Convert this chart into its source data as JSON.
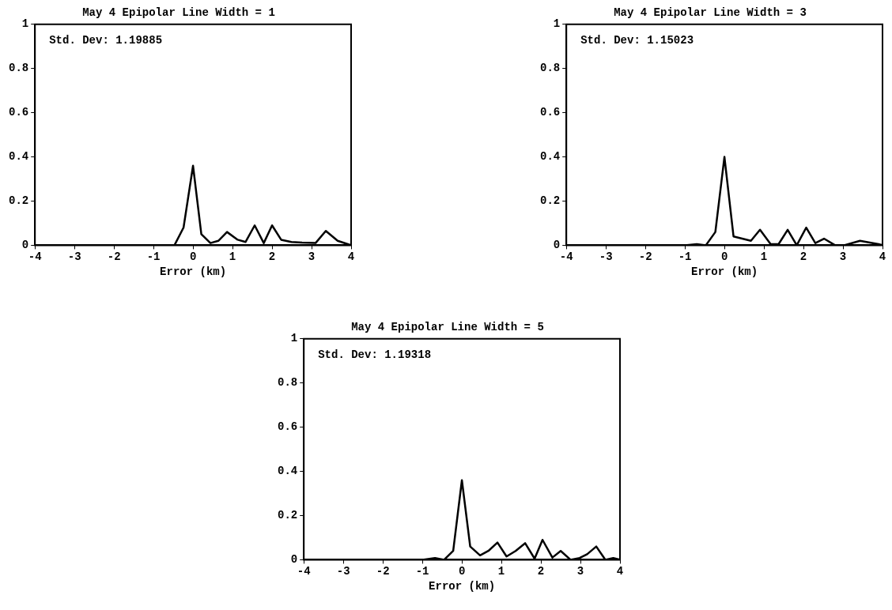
{
  "chart_data": [
    {
      "type": "line",
      "title": "May 4 Epipolar Line Width = 1",
      "xlabel": "Error (km)",
      "annotations": [
        "Std. Dev: 1.19885"
      ],
      "xlim": [
        -4,
        4
      ],
      "ylim": [
        0,
        1
      ],
      "xticks": [
        -4,
        -3,
        -2,
        -1,
        0,
        1,
        2,
        3,
        4
      ],
      "yticks": [
        0,
        0.2,
        0.4,
        0.6,
        0.8,
        1
      ],
      "grid": false,
      "legend": false,
      "marker": "none",
      "line_style": "solid",
      "series": [
        {
          "color": "#000000",
          "x": [
            -4,
            -0.7,
            -0.47,
            -0.24,
            0,
            0.21,
            0.44,
            0.64,
            0.86,
            1.13,
            1.33,
            1.56,
            1.79,
            2.0,
            2.23,
            2.49,
            2.76,
            3.1,
            3.36,
            3.66,
            4
          ],
          "values": [
            0,
            0,
            0,
            0.08,
            0.36,
            0.05,
            0.01,
            0.02,
            0.06,
            0.025,
            0.015,
            0.09,
            0.01,
            0.09,
            0.025,
            0.015,
            0.012,
            0.01,
            0.065,
            0.02,
            0
          ]
        }
      ]
    },
    {
      "type": "line",
      "title": "May 4 Epipolar Line Width = 3",
      "xlabel": "Error (km)",
      "annotations": [
        "Std. Dev: 1.15023"
      ],
      "xlim": [
        -4,
        4
      ],
      "ylim": [
        0,
        1
      ],
      "xticks": [
        -4,
        -3,
        -2,
        -1,
        0,
        1,
        2,
        3,
        4
      ],
      "yticks": [
        0,
        0.2,
        0.4,
        0.6,
        0.8,
        1
      ],
      "grid": false,
      "legend": false,
      "marker": "none",
      "line_style": "solid",
      "series": [
        {
          "color": "#000000",
          "x": [
            -4,
            -1.0,
            -0.7,
            -0.47,
            -0.23,
            0,
            0.23,
            0.67,
            0.9,
            1.17,
            1.37,
            1.6,
            1.83,
            2.07,
            2.3,
            2.52,
            2.8,
            3.03,
            3.43,
            3.9,
            4
          ],
          "values": [
            0,
            0,
            0.005,
            0,
            0.06,
            0.4,
            0.04,
            0.02,
            0.07,
            0.005,
            0.005,
            0.07,
            0,
            0.08,
            0.01,
            0.03,
            0,
            0,
            0.02,
            0.005,
            0
          ]
        }
      ]
    },
    {
      "type": "line",
      "title": "May 4 Epipolar Line Width = 5",
      "xlabel": "Error (km)",
      "annotations": [
        "Std. Dev: 1.19318"
      ],
      "xlim": [
        -4,
        4
      ],
      "ylim": [
        0,
        1
      ],
      "xticks": [
        -4,
        -3,
        -2,
        -1,
        0,
        1,
        2,
        3,
        4
      ],
      "yticks": [
        0,
        0.2,
        0.4,
        0.6,
        0.8,
        1
      ],
      "grid": false,
      "legend": false,
      "marker": "none",
      "line_style": "solid",
      "series": [
        {
          "color": "#000000",
          "x": [
            -4,
            -1.0,
            -0.68,
            -0.45,
            -0.22,
            0,
            0.21,
            0.46,
            0.67,
            0.9,
            1.13,
            1.36,
            1.6,
            1.84,
            2.04,
            2.29,
            2.5,
            2.75,
            2.98,
            3.17,
            3.4,
            3.63,
            3.83,
            4
          ],
          "values": [
            0,
            0,
            0.008,
            0,
            0.04,
            0.36,
            0.06,
            0.02,
            0.04,
            0.078,
            0.015,
            0.04,
            0.075,
            0.005,
            0.09,
            0.01,
            0.04,
            0,
            0.008,
            0.025,
            0.06,
            0,
            0.008,
            0
          ]
        }
      ]
    }
  ]
}
